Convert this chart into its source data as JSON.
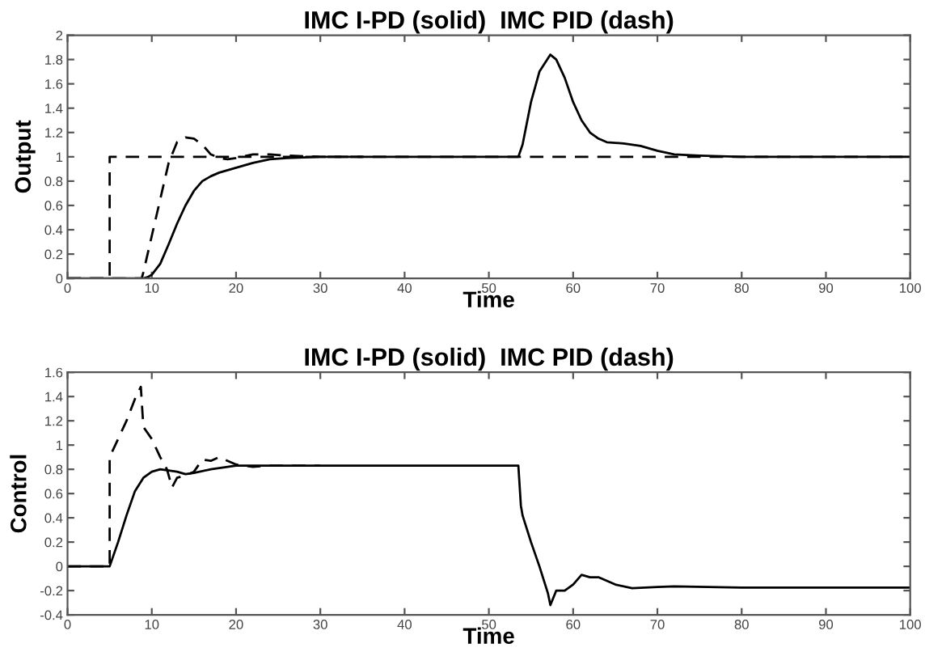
{
  "chart_data": [
    {
      "type": "line",
      "title": "IMC I-PD (solid)  IMC PID (dash)",
      "xlabel": "Time",
      "ylabel": "Output",
      "xlim": [
        0,
        100
      ],
      "xticks": [
        0,
        10,
        20,
        30,
        40,
        50,
        60,
        70,
        80,
        90,
        100
      ],
      "ylim": [
        0,
        2
      ],
      "yticks": [
        0,
        0.2,
        0.4,
        0.6,
        0.8,
        1,
        1.2,
        1.4,
        1.6,
        1.8,
        2
      ],
      "grid": false,
      "legend": false,
      "series": [
        {
          "color": "#000000",
          "line_style": "dashed",
          "x": [
            0,
            5,
            5,
            100
          ],
          "values": [
            0,
            0,
            1,
            1
          ]
        },
        {
          "color": "#000000",
          "line_style": "dashed",
          "x": [
            0,
            8.8,
            9,
            10,
            11,
            12,
            13,
            14,
            15,
            16,
            17,
            18,
            19,
            20,
            22,
            24,
            26,
            30,
            35
          ],
          "values": [
            0,
            0,
            0.05,
            0.35,
            0.65,
            0.95,
            1.12,
            1.16,
            1.15,
            1.1,
            1.02,
            0.99,
            0.98,
            0.99,
            1.02,
            1.02,
            1.01,
            1.0,
            1.0
          ]
        },
        {
          "color": "#000000",
          "line_style": "solid",
          "x": [
            0,
            9,
            9.5,
            10,
            11,
            12,
            13,
            14,
            15,
            16,
            17,
            18,
            20,
            22,
            24,
            26,
            30,
            53.5,
            54,
            55,
            56,
            57.3,
            58,
            59,
            60,
            61,
            62,
            63,
            64,
            66,
            68,
            70,
            72,
            75,
            80,
            100
          ],
          "values": [
            0,
            0,
            0.01,
            0.03,
            0.12,
            0.28,
            0.45,
            0.6,
            0.72,
            0.8,
            0.84,
            0.87,
            0.91,
            0.95,
            0.98,
            0.99,
            1.0,
            1.0,
            1.1,
            1.45,
            1.7,
            1.84,
            1.8,
            1.65,
            1.45,
            1.3,
            1.2,
            1.15,
            1.12,
            1.11,
            1.09,
            1.05,
            1.02,
            1.01,
            1.0,
            1.0
          ]
        }
      ]
    },
    {
      "type": "line",
      "title": "IMC I-PD (solid)  IMC PID (dash)",
      "xlabel": "Time",
      "ylabel": "Control",
      "xlim": [
        0,
        100
      ],
      "xticks": [
        0,
        10,
        20,
        30,
        40,
        50,
        60,
        70,
        80,
        90,
        100
      ],
      "ylim": [
        -0.4,
        1.6
      ],
      "yticks": [
        -0.4,
        -0.2,
        0,
        0.2,
        0.4,
        0.6,
        0.8,
        1,
        1.2,
        1.4,
        1.6
      ],
      "grid": false,
      "legend": false,
      "series": [
        {
          "color": "#000000",
          "line_style": "dashed",
          "x": [
            0,
            5,
            5,
            6,
            7,
            8,
            8.7,
            9,
            10,
            11,
            11.8,
            12.4,
            13,
            14,
            15,
            16,
            17,
            18,
            19,
            20,
            22,
            24,
            26,
            30
          ],
          "values": [
            0,
            0,
            0.9,
            1.05,
            1.2,
            1.38,
            1.48,
            1.15,
            1.05,
            0.9,
            0.8,
            0.65,
            0.73,
            0.75,
            0.78,
            0.88,
            0.87,
            0.9,
            0.87,
            0.84,
            0.82,
            0.83,
            0.83,
            0.83
          ]
        },
        {
          "color": "#000000",
          "line_style": "solid",
          "x": [
            0,
            5,
            6,
            7,
            8,
            9,
            10,
            11,
            12,
            13,
            14,
            15,
            17,
            19,
            20,
            25,
            53.5,
            53.8,
            54,
            55,
            56,
            57,
            57.3,
            58,
            59,
            60,
            61,
            62,
            63,
            64,
            65,
            67,
            70,
            72,
            80,
            100
          ],
          "values": [
            0,
            0,
            0.2,
            0.42,
            0.62,
            0.73,
            0.78,
            0.8,
            0.79,
            0.78,
            0.76,
            0.77,
            0.8,
            0.82,
            0.83,
            0.83,
            0.83,
            0.5,
            0.42,
            0.2,
            0.0,
            -0.22,
            -0.32,
            -0.2,
            -0.2,
            -0.15,
            -0.07,
            -0.09,
            -0.09,
            -0.12,
            -0.15,
            -0.18,
            -0.17,
            -0.165,
            -0.175,
            -0.175
          ]
        }
      ]
    }
  ]
}
